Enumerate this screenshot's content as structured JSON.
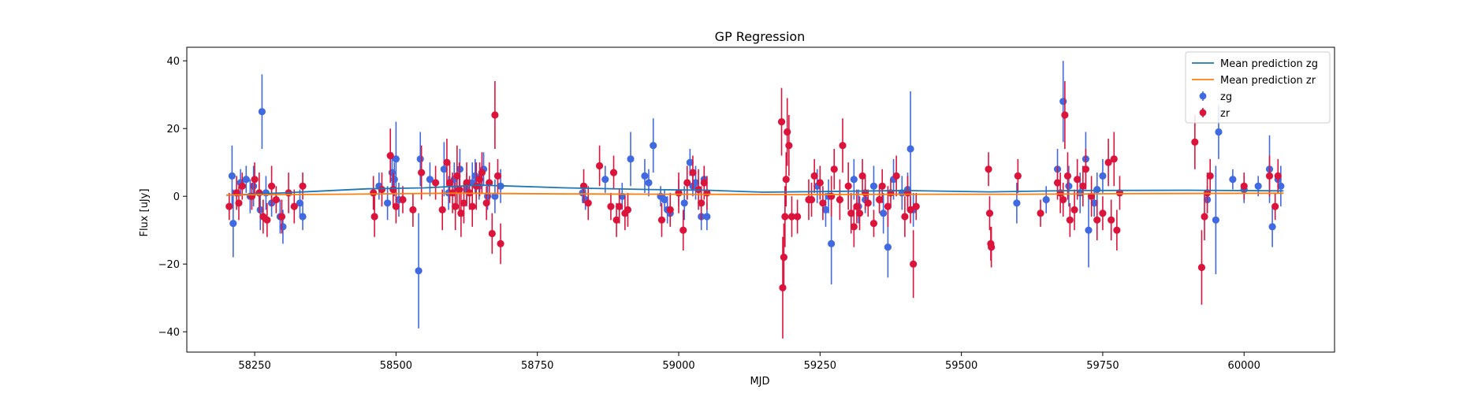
{
  "chart_data": {
    "type": "scatter",
    "title": "GP Regression",
    "xlabel": "MJD",
    "ylabel": "Flux [uJy]",
    "xlim": [
      58130,
      60160
    ],
    "ylim": [
      -46,
      44
    ],
    "xticks": [
      58250,
      58500,
      58750,
      59000,
      59250,
      59500,
      59750,
      60000
    ],
    "yticks": [
      -40,
      -20,
      0,
      20,
      40
    ],
    "xtick_labels": [
      "58250",
      "58500",
      "58750",
      "59000",
      "59250",
      "59500",
      "59750",
      "60000"
    ],
    "ytick_labels": [
      "−40",
      "−20",
      "0",
      "20",
      "40"
    ],
    "grid": false,
    "legend_position": "top-right",
    "colors": {
      "zg": "#4169e1",
      "zr": "#dc143c",
      "mean_zg": "#1f77b4",
      "mean_zr": "#ff7f0e"
    },
    "legend": [
      {
        "key": "mean_zg",
        "label": "Mean prediction zg",
        "kind": "line"
      },
      {
        "key": "mean_zr",
        "label": "Mean prediction zr",
        "kind": "line"
      },
      {
        "key": "zg",
        "label": "zg",
        "kind": "errorbar"
      },
      {
        "key": "zr",
        "label": "zr",
        "kind": "errorbar"
      }
    ],
    "mean_prediction": {
      "zg": [
        [
          58200,
          0.3
        ],
        [
          58300,
          1.0
        ],
        [
          58450,
          2.2
        ],
        [
          58550,
          2.5
        ],
        [
          58650,
          3.3
        ],
        [
          58800,
          2.5
        ],
        [
          58950,
          2.0
        ],
        [
          59050,
          1.8
        ],
        [
          59150,
          1.2
        ],
        [
          59250,
          1.4
        ],
        [
          59400,
          1.7
        ],
        [
          59550,
          1.3
        ],
        [
          59700,
          1.7
        ],
        [
          59900,
          1.8
        ],
        [
          60070,
          1.6
        ]
      ],
      "zr": [
        [
          58200,
          0.4
        ],
        [
          58400,
          0.6
        ],
        [
          58600,
          0.9
        ],
        [
          58800,
          0.7
        ],
        [
          59000,
          0.6
        ],
        [
          59200,
          0.5
        ],
        [
          59400,
          0.6
        ],
        [
          59600,
          0.6
        ],
        [
          59800,
          0.8
        ],
        [
          60070,
          0.9
        ]
      ]
    },
    "series": [
      {
        "name": "zg",
        "points": [
          [
            58210,
            6,
            9
          ],
          [
            58212,
            -8,
            10
          ],
          [
            58225,
            4,
            4
          ],
          [
            58235,
            5,
            4
          ],
          [
            58242,
            0,
            5
          ],
          [
            58248,
            3,
            6
          ],
          [
            58260,
            -4,
            6
          ],
          [
            58263,
            25,
            11
          ],
          [
            58270,
            1,
            5
          ],
          [
            58280,
            -2,
            4
          ],
          [
            58295,
            -6,
            5
          ],
          [
            58300,
            -9,
            5
          ],
          [
            58330,
            -2,
            4
          ],
          [
            58335,
            -6,
            4
          ],
          [
            58470,
            3,
            4
          ],
          [
            58485,
            -2,
            5
          ],
          [
            58493,
            7,
            6
          ],
          [
            58497,
            5,
            5
          ],
          [
            58500,
            11,
            11
          ],
          [
            58505,
            -1,
            5
          ],
          [
            58540,
            -22,
            17
          ],
          [
            58543,
            11,
            8
          ],
          [
            58560,
            5,
            5
          ],
          [
            58585,
            8,
            8
          ],
          [
            58593,
            1,
            5
          ],
          [
            58603,
            5,
            5
          ],
          [
            58613,
            8,
            6
          ],
          [
            58625,
            2,
            5
          ],
          [
            58635,
            4,
            6
          ],
          [
            58640,
            6,
            5
          ],
          [
            58647,
            3,
            4
          ],
          [
            58655,
            8,
            5
          ],
          [
            58662,
            0,
            4
          ],
          [
            58675,
            0,
            5
          ],
          [
            58685,
            3,
            5
          ],
          [
            58830,
            1,
            3
          ],
          [
            58835,
            -1,
            3
          ],
          [
            58870,
            5,
            4
          ],
          [
            58900,
            0,
            4
          ],
          [
            58915,
            11,
            8
          ],
          [
            58940,
            6,
            5
          ],
          [
            58947,
            4,
            4
          ],
          [
            58955,
            15,
            8
          ],
          [
            58968,
            0,
            3
          ],
          [
            58975,
            -1,
            3
          ],
          [
            58980,
            -4,
            4
          ],
          [
            58985,
            -5,
            3
          ],
          [
            59000,
            1,
            4
          ],
          [
            59010,
            -2,
            5
          ],
          [
            59020,
            10,
            4
          ],
          [
            59025,
            3,
            3
          ],
          [
            59030,
            4,
            5
          ],
          [
            59040,
            -6,
            4
          ],
          [
            59045,
            5,
            4
          ],
          [
            59050,
            -6,
            4
          ],
          [
            59245,
            3,
            5
          ],
          [
            59260,
            -4,
            5
          ],
          [
            59265,
            0,
            5
          ],
          [
            59270,
            -14,
            12
          ],
          [
            59310,
            5,
            6
          ],
          [
            59318,
            -3,
            5
          ],
          [
            59330,
            -1,
            4
          ],
          [
            59345,
            3,
            6
          ],
          [
            59362,
            -5,
            6
          ],
          [
            59370,
            -15,
            9
          ],
          [
            59380,
            5,
            6
          ],
          [
            59395,
            1,
            5
          ],
          [
            59405,
            2,
            5
          ],
          [
            59410,
            14,
            17
          ],
          [
            59415,
            -4,
            5
          ],
          [
            59598,
            -2,
            6
          ],
          [
            59650,
            -1,
            4
          ],
          [
            59670,
            8,
            6
          ],
          [
            59680,
            28,
            12
          ],
          [
            59690,
            3,
            6
          ],
          [
            59710,
            1,
            6
          ],
          [
            59720,
            11,
            8
          ],
          [
            59725,
            -10,
            11
          ],
          [
            59735,
            -2,
            4
          ],
          [
            59740,
            2,
            5
          ],
          [
            59750,
            6,
            5
          ],
          [
            59935,
            -1,
            4
          ],
          [
            59950,
            -7,
            16
          ],
          [
            59955,
            19,
            8
          ],
          [
            59980,
            5,
            3
          ],
          [
            60000,
            2,
            4
          ],
          [
            60025,
            3,
            3
          ],
          [
            60045,
            8,
            10
          ],
          [
            60050,
            -9,
            6
          ],
          [
            60060,
            5,
            4
          ],
          [
            60065,
            3,
            6
          ]
        ]
      },
      {
        "name": "zr",
        "points": [
          [
            58205,
            -3,
            4
          ],
          [
            58218,
            1,
            5
          ],
          [
            58222,
            -2,
            5
          ],
          [
            58228,
            3,
            4
          ],
          [
            58245,
            0,
            4
          ],
          [
            58250,
            5,
            5
          ],
          [
            58258,
            1,
            6
          ],
          [
            58265,
            -6,
            5
          ],
          [
            58272,
            -7,
            5
          ],
          [
            58280,
            3,
            6
          ],
          [
            58288,
            -1,
            4
          ],
          [
            58298,
            -6,
            5
          ],
          [
            58310,
            1,
            6
          ],
          [
            58320,
            -3,
            5
          ],
          [
            58335,
            3,
            4
          ],
          [
            58460,
            1,
            5
          ],
          [
            58462,
            -6,
            6
          ],
          [
            58475,
            2,
            5
          ],
          [
            58490,
            12,
            8
          ],
          [
            58495,
            2,
            5
          ],
          [
            58500,
            -3,
            5
          ],
          [
            58512,
            -1,
            4
          ],
          [
            58530,
            -4,
            5
          ],
          [
            58545,
            7,
            8
          ],
          [
            58570,
            4,
            5
          ],
          [
            58582,
            -4,
            6
          ],
          [
            58590,
            10,
            7
          ],
          [
            58595,
            4,
            6
          ],
          [
            58600,
            1,
            6
          ],
          [
            58605,
            -3,
            7
          ],
          [
            58608,
            6,
            9
          ],
          [
            58612,
            2,
            8
          ],
          [
            58615,
            -5,
            7
          ],
          [
            58620,
            -2,
            6
          ],
          [
            58625,
            4,
            6
          ],
          [
            58630,
            1,
            5
          ],
          [
            58635,
            -3,
            6
          ],
          [
            58642,
            3,
            7
          ],
          [
            58648,
            5,
            5
          ],
          [
            58652,
            7,
            6
          ],
          [
            58660,
            -2,
            5
          ],
          [
            58665,
            4,
            6
          ],
          [
            58670,
            -11,
            6
          ],
          [
            58675,
            24,
            10
          ],
          [
            58680,
            6,
            5
          ],
          [
            58685,
            -14,
            6
          ],
          [
            58832,
            3,
            5
          ],
          [
            58840,
            -2,
            5
          ],
          [
            58860,
            9,
            6
          ],
          [
            58880,
            -3,
            4
          ],
          [
            58885,
            7,
            5
          ],
          [
            58890,
            -7,
            5
          ],
          [
            58895,
            -3,
            5
          ],
          [
            58905,
            -5,
            5
          ],
          [
            58910,
            -4,
            5
          ],
          [
            58970,
            -7,
            5
          ],
          [
            58985,
            -4,
            5
          ],
          [
            59000,
            1,
            6
          ],
          [
            59008,
            -10,
            6
          ],
          [
            59015,
            4,
            5
          ],
          [
            59025,
            7,
            5
          ],
          [
            59035,
            2,
            6
          ],
          [
            59040,
            -2,
            5
          ],
          [
            59045,
            4,
            5
          ],
          [
            59050,
            1,
            5
          ],
          [
            59182,
            22,
            10
          ],
          [
            59184,
            -27,
            15
          ],
          [
            59186,
            -18,
            10
          ],
          [
            59188,
            -6,
            9
          ],
          [
            59190,
            5,
            8
          ],
          [
            59192,
            19,
            10
          ],
          [
            59195,
            15,
            9
          ],
          [
            59200,
            -6,
            6
          ],
          [
            59210,
            -6,
            5
          ],
          [
            59230,
            -1,
            6
          ],
          [
            59235,
            -1,
            5
          ],
          [
            59240,
            6,
            5
          ],
          [
            59250,
            4,
            5
          ],
          [
            59255,
            -2,
            5
          ],
          [
            59270,
            0,
            6
          ],
          [
            59275,
            8,
            6
          ],
          [
            59285,
            -1,
            6
          ],
          [
            59290,
            15,
            8
          ],
          [
            59300,
            3,
            7
          ],
          [
            59305,
            -5,
            6
          ],
          [
            59310,
            -9,
            6
          ],
          [
            59315,
            -3,
            5
          ],
          [
            59320,
            -5,
            5
          ],
          [
            59325,
            6,
            5
          ],
          [
            59330,
            1,
            5
          ],
          [
            59335,
            -2,
            4
          ],
          [
            59345,
            -8,
            4
          ],
          [
            59355,
            -1,
            4
          ],
          [
            59360,
            3,
            5
          ],
          [
            59370,
            -3,
            6
          ],
          [
            59375,
            1,
            4
          ],
          [
            59385,
            6,
            6
          ],
          [
            59400,
            -6,
            6
          ],
          [
            59405,
            1,
            5
          ],
          [
            59410,
            -4,
            4
          ],
          [
            59415,
            -20,
            10
          ],
          [
            59420,
            -3,
            4
          ],
          [
            59548,
            8,
            5
          ],
          [
            59550,
            -5,
            5
          ],
          [
            59552,
            -14,
            5
          ],
          [
            59553,
            -15,
            6
          ],
          [
            59600,
            6,
            5
          ],
          [
            59640,
            -5,
            4
          ],
          [
            59670,
            4,
            5
          ],
          [
            59675,
            1,
            6
          ],
          [
            59680,
            -1,
            5
          ],
          [
            59683,
            24,
            10
          ],
          [
            59688,
            6,
            7
          ],
          [
            59692,
            -7,
            5
          ],
          [
            59700,
            -4,
            6
          ],
          [
            59705,
            5,
            6
          ],
          [
            59715,
            3,
            6
          ],
          [
            59720,
            8,
            6
          ],
          [
            59730,
            0,
            6
          ],
          [
            59740,
            -7,
            6
          ],
          [
            59750,
            -5,
            5
          ],
          [
            59760,
            10,
            7
          ],
          [
            59765,
            -7,
            6
          ],
          [
            59770,
            11,
            8
          ],
          [
            59775,
            -10,
            6
          ],
          [
            59780,
            1,
            5
          ],
          [
            59913,
            16,
            8
          ],
          [
            59925,
            -21,
            11
          ],
          [
            59930,
            -6,
            7
          ],
          [
            59935,
            1,
            6
          ],
          [
            59940,
            6,
            5
          ],
          [
            60000,
            3,
            4
          ],
          [
            60045,
            6,
            6
          ],
          [
            60055,
            -3,
            4
          ],
          [
            60060,
            6,
            5
          ]
        ]
      }
    ]
  }
}
